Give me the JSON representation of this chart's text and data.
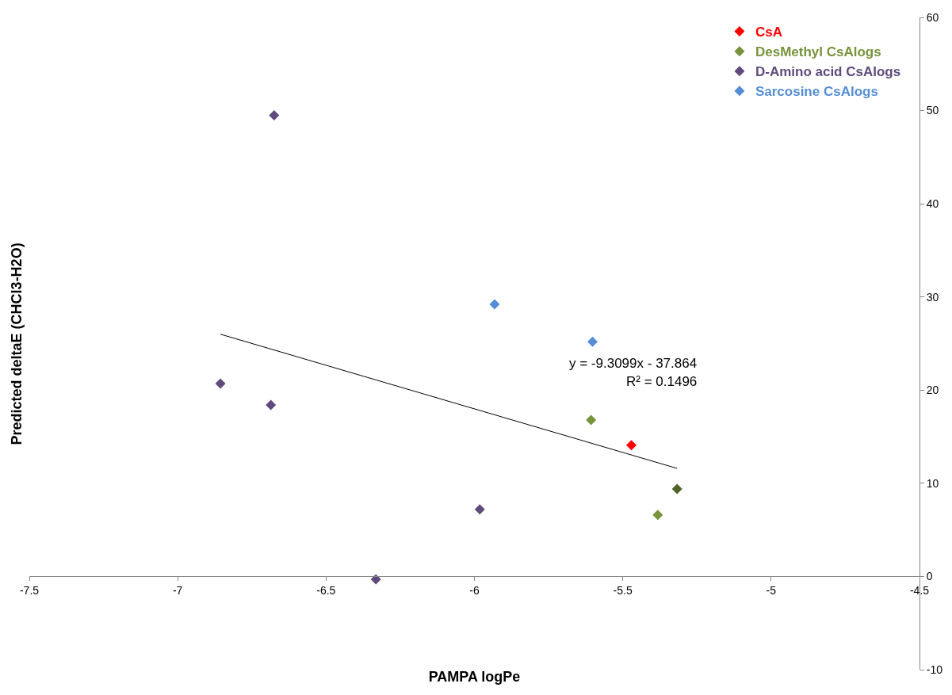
{
  "chart_data": {
    "type": "scatter",
    "xlabel": "PAMPA logPe",
    "ylabel": "Predicted deltaE (CHCl3-H2O)",
    "xlim": [
      -7.5,
      -4.5
    ],
    "xticks": [
      -7.5,
      -7,
      -6.5,
      -6,
      -5.5,
      -5,
      -4.5
    ],
    "ylim": [
      -10,
      60
    ],
    "yticks": [
      -10,
      0,
      10,
      20,
      30,
      40,
      50,
      60
    ],
    "legend": "top right",
    "marker": "diamond",
    "series": [
      {
        "name": "CsA",
        "color": "#ff0000",
        "x": [
          -5.471
        ],
        "values": [
          14.1
        ]
      },
      {
        "name": "DesMethyl CsAlogs",
        "color": "#77933c",
        "colors": [
          "#77933c",
          "#77933c",
          "#4f6228"
        ],
        "x": [
          -5.607,
          -5.382,
          -5.317
        ],
        "values": [
          16.8,
          6.6,
          9.4
        ]
      },
      {
        "name": "D-Amino acid CsAlogs",
        "color": "#604a7b",
        "x": [
          -6.675,
          -6.856,
          -6.686,
          -5.982,
          -6.332
        ],
        "values": [
          49.5,
          20.7,
          18.4,
          7.2,
          -0.3
        ]
      },
      {
        "name": "Sarcosine CsAlogs",
        "color": "#558ed5",
        "x": [
          -5.932,
          -5.602
        ],
        "values": [
          29.2,
          25.2
        ]
      },
      {
        "type": "line",
        "color": "#000000",
        "x": [
          -6.856,
          -5.317
        ],
        "values": [
          26.0,
          11.6
        ],
        "marker": "none"
      }
    ],
    "annotations": [
      "y = -9.3099x - 37.864",
      "R² = 0.1496"
    ]
  }
}
